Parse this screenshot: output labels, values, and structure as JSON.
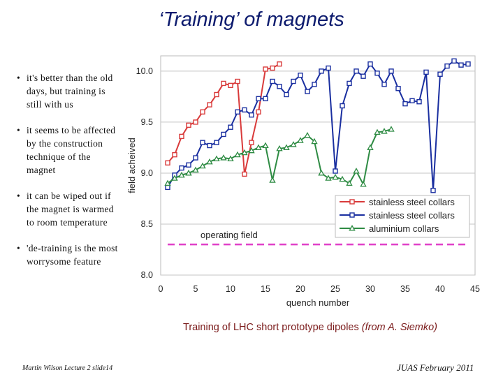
{
  "slide": {
    "title": "‘Training’ of magnets",
    "bullets": [
      "it's better than the old days, but training is still with us",
      "it seems to be affected by the construction technique of the magnet",
      "it can be wiped out if the magnet is warmed to room temperature",
      "'de-training is the most worrysome feature"
    ],
    "bullet_symbol": "•",
    "caption_main": "Training of LHC short prototype dipoles ",
    "caption_italic": "(from A. Siemko)",
    "footer_left": "Martin Wilson Lecture 2 slide14",
    "footer_right": "JUAS February 2011"
  },
  "chart_data": {
    "type": "line",
    "xlabel": "quench number",
    "ylabel": "field acheived",
    "xlim": [
      0,
      45
    ],
    "ylim": [
      8.0,
      10.15
    ],
    "xticks": [
      0,
      5,
      10,
      15,
      20,
      25,
      30,
      35,
      40,
      45
    ],
    "yticks": [
      8.0,
      8.5,
      9.0,
      9.5,
      10.0
    ],
    "ytick_labels": [
      "8.0",
      "8.5",
      "9.0",
      "9.5",
      "10.0"
    ],
    "grid": "horizontal",
    "legend_position": "right",
    "series": [
      {
        "name": "stainless steel collars",
        "color": "#d93a3a",
        "marker": "square",
        "x": [
          1,
          2,
          3,
          4,
          5,
          6,
          7,
          8,
          9,
          10,
          11,
          12,
          13,
          14,
          15,
          16,
          17
        ],
        "y": [
          9.1,
          9.18,
          9.36,
          9.47,
          9.5,
          9.6,
          9.67,
          9.77,
          9.88,
          9.86,
          9.9,
          8.99,
          9.3,
          9.6,
          10.02,
          10.03,
          10.07
        ]
      },
      {
        "name": "stainless steel collars",
        "color": "#1a2fa0",
        "marker": "square",
        "x": [
          1,
          2,
          3,
          4,
          5,
          6,
          7,
          8,
          9,
          10,
          11,
          12,
          13,
          14,
          15,
          16,
          17,
          18,
          19,
          20,
          21,
          22,
          23,
          24,
          25,
          26,
          27,
          28,
          29,
          30,
          31,
          32,
          33,
          34,
          35,
          36,
          37,
          38,
          39,
          40,
          41,
          42,
          43,
          44
        ],
        "y": [
          8.86,
          8.98,
          9.05,
          9.08,
          9.15,
          9.3,
          9.27,
          9.3,
          9.38,
          9.45,
          9.6,
          9.62,
          9.57,
          9.73,
          9.73,
          9.9,
          9.85,
          9.77,
          9.9,
          9.96,
          9.8,
          9.87,
          10.0,
          10.03,
          9.02,
          9.66,
          9.88,
          10.0,
          9.95,
          10.07,
          9.98,
          9.87,
          10.0,
          9.83,
          9.68,
          9.71,
          9.7,
          9.99,
          8.83,
          9.97,
          10.05,
          10.1,
          10.06,
          10.07
        ]
      },
      {
        "name": "aluminium collars",
        "color": "#2e8b43",
        "marker": "triangle",
        "x": [
          1,
          2,
          3,
          4,
          5,
          6,
          7,
          8,
          9,
          10,
          11,
          12,
          13,
          14,
          15,
          16,
          17,
          18,
          19,
          20,
          21,
          22,
          23,
          24,
          25,
          26,
          27,
          28,
          29,
          30,
          31,
          32,
          33
        ],
        "y": [
          8.9,
          8.95,
          8.98,
          9.0,
          9.03,
          9.07,
          9.11,
          9.14,
          9.15,
          9.14,
          9.18,
          9.2,
          9.22,
          9.25,
          9.27,
          8.93,
          9.24,
          9.25,
          9.28,
          9.32,
          9.37,
          9.31,
          9.0,
          8.95,
          8.96,
          8.94,
          8.9,
          9.02,
          8.89,
          9.25,
          9.4,
          9.41,
          9.43
        ]
      }
    ],
    "annotations": [
      {
        "text": "operating field",
        "value": 8.3,
        "color": "#e040c8",
        "style": "dashed"
      }
    ]
  }
}
